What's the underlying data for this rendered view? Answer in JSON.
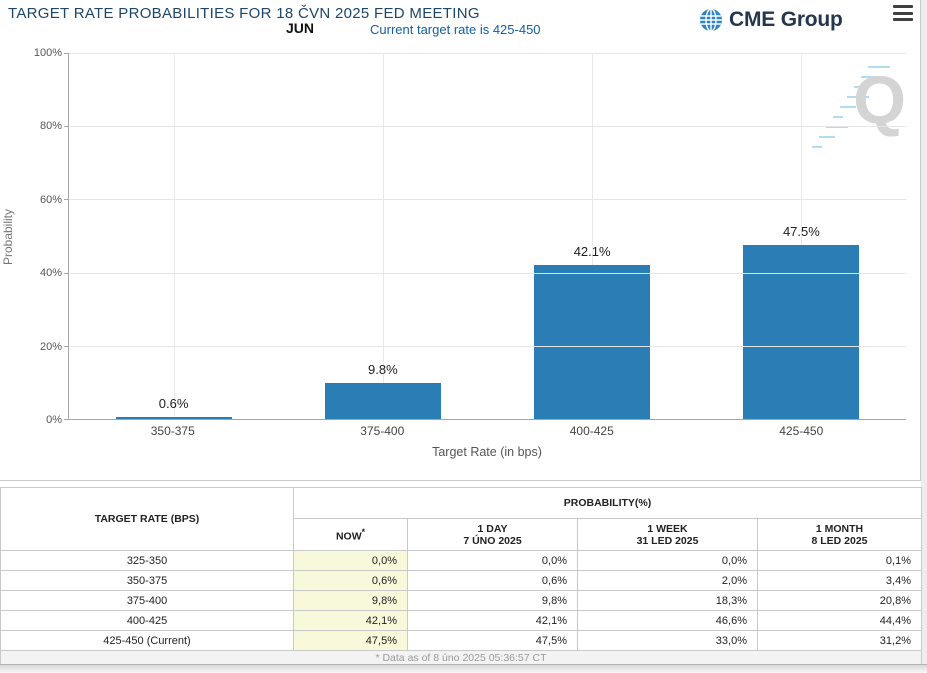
{
  "header": {
    "title": "TARGET RATE PROBABILITIES FOR 18 ČVN 2025 FED MEETING",
    "month": "JUN",
    "current_rate_note": "Current target rate is 425-450",
    "brand": "CME Group"
  },
  "colors": {
    "bar": "#2b7db6",
    "title": "#1d4668",
    "subtitle": "#1160a8",
    "now_column_bg": "#f8f8da",
    "brand_navy": "#25374e",
    "globe_blue": "#2d85c5"
  },
  "chart_data": {
    "type": "bar",
    "title": "TARGET RATE PROBABILITIES FOR 18 ČVN 2025 FED MEETING",
    "categories": [
      "350-375",
      "375-400",
      "400-425",
      "425-450"
    ],
    "values": [
      0.6,
      9.8,
      42.1,
      47.5
    ],
    "value_labels": [
      "0.6%",
      "9.8%",
      "42.1%",
      "47.5%"
    ],
    "xlabel": "Target Rate (in bps)",
    "ylabel": "Probability",
    "ylim": [
      0,
      100
    ],
    "yticks": [
      "0%",
      "20%",
      "40%",
      "60%",
      "80%",
      "100%"
    ],
    "grid": true,
    "legend": false
  },
  "watermark": "Q",
  "table": {
    "col1_header": "TARGET RATE (BPS)",
    "group_header": "PROBABILITY(%)",
    "sub_headers": [
      {
        "label": "NOW",
        "sup": "*",
        "date": ""
      },
      {
        "label": "1 DAY",
        "sup": "",
        "date": "7 ÚNO 2025"
      },
      {
        "label": "1 WEEK",
        "sup": "",
        "date": "31 LED 2025"
      },
      {
        "label": "1 MONTH",
        "sup": "",
        "date": "8 LED 2025"
      }
    ],
    "rows": [
      {
        "label": "325-350",
        "now": "0,0%",
        "day": "0,0%",
        "week": "0,0%",
        "month": "0,1%"
      },
      {
        "label": "350-375",
        "now": "0,6%",
        "day": "0,6%",
        "week": "2,0%",
        "month": "3,4%"
      },
      {
        "label": "375-400",
        "now": "9,8%",
        "day": "9,8%",
        "week": "18,3%",
        "month": "20,8%"
      },
      {
        "label": "400-425",
        "now": "42,1%",
        "day": "42,1%",
        "week": "46,6%",
        "month": "44,4%"
      },
      {
        "label": "425-450 (Current)",
        "now": "47,5%",
        "day": "47,5%",
        "week": "33,0%",
        "month": "31,2%"
      }
    ],
    "footnote": "* Data as of 8 úno 2025 05:36:57 CT"
  }
}
